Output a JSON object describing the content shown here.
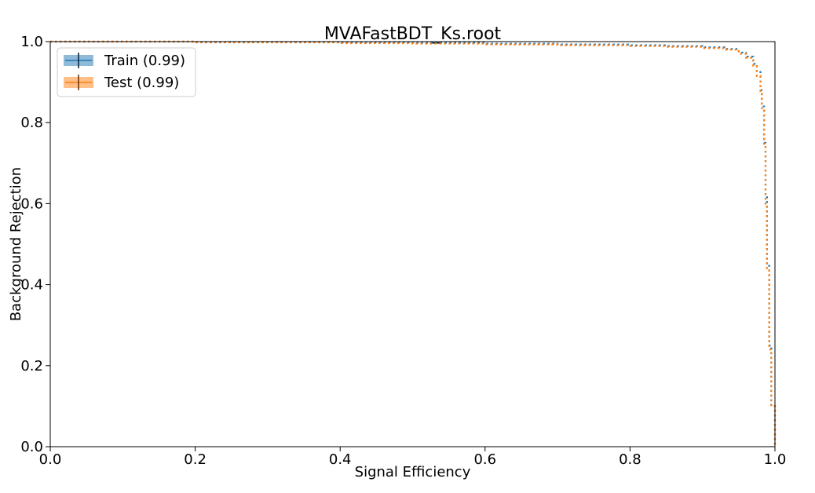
{
  "chart_data": {
    "type": "line",
    "title": "MVAFastBDT_Ks.root",
    "xlabel": "Signal Efficiency",
    "ylabel": "Background Rejection",
    "xlim": [
      0.0,
      1.0
    ],
    "ylim": [
      0.0,
      1.0
    ],
    "xticks": [
      "0.0",
      "0.2",
      "0.4",
      "0.6",
      "0.8",
      "1.0"
    ],
    "yticks": [
      "0.0",
      "0.2",
      "0.4",
      "0.6",
      "0.8",
      "1.0"
    ],
    "grid": false,
    "legend_position": "top-left",
    "series": [
      {
        "name": "Train (0.99)",
        "color": "#1f77b4",
        "points": [
          [
            0.0,
            1.0
          ],
          [
            0.2,
            0.999
          ],
          [
            0.4,
            0.998
          ],
          [
            0.5,
            0.997
          ],
          [
            0.6,
            0.995
          ],
          [
            0.7,
            0.993
          ],
          [
            0.8,
            0.991
          ],
          [
            0.85,
            0.989
          ],
          [
            0.9,
            0.986
          ],
          [
            0.93,
            0.982
          ],
          [
            0.95,
            0.973
          ],
          [
            0.96,
            0.963
          ],
          [
            0.97,
            0.945
          ],
          [
            0.975,
            0.925
          ],
          [
            0.98,
            0.88
          ],
          [
            0.982,
            0.84
          ],
          [
            0.985,
            0.75
          ],
          [
            0.987,
            0.62
          ],
          [
            0.989,
            0.45
          ],
          [
            0.992,
            0.25
          ],
          [
            0.995,
            0.1
          ],
          [
            1.0,
            0.0
          ]
        ]
      },
      {
        "name": "Test (0.99)",
        "color": "#ff7f0e",
        "points": [
          [
            0.0,
            1.0
          ],
          [
            0.2,
            0.998
          ],
          [
            0.4,
            0.996
          ],
          [
            0.5,
            0.995
          ],
          [
            0.6,
            0.993
          ],
          [
            0.7,
            0.991
          ],
          [
            0.8,
            0.989
          ],
          [
            0.85,
            0.987
          ],
          [
            0.9,
            0.984
          ],
          [
            0.93,
            0.98
          ],
          [
            0.95,
            0.97
          ],
          [
            0.96,
            0.96
          ],
          [
            0.97,
            0.94
          ],
          [
            0.975,
            0.915
          ],
          [
            0.98,
            0.87
          ],
          [
            0.982,
            0.83
          ],
          [
            0.985,
            0.74
          ],
          [
            0.987,
            0.6
          ],
          [
            0.989,
            0.44
          ],
          [
            0.992,
            0.24
          ],
          [
            0.995,
            0.1
          ],
          [
            1.0,
            0.0
          ]
        ]
      }
    ]
  }
}
